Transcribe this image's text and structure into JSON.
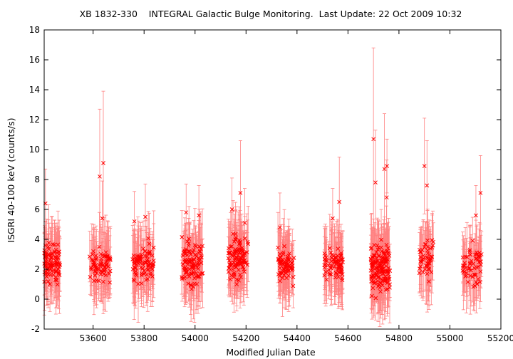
{
  "chart_data": {
    "type": "scatter",
    "title": "XB 1832-330    INTEGRAL Galactic Bulge Monitoring.  Last Update: 22 Oct 2009 10:32",
    "xlabel": "Modified Julian Date",
    "ylabel": "ISGRI 40-100 keV (counts/s)",
    "xlim": [
      53408,
      55200
    ],
    "ylim": [
      -2,
      18
    ],
    "xticks": [
      53600,
      53800,
      54000,
      54200,
      54400,
      54600,
      54800,
      55000,
      55200
    ],
    "yticks": [
      -2,
      0,
      2,
      4,
      6,
      8,
      10,
      12,
      14,
      16,
      18
    ],
    "grid": false,
    "legend": "none",
    "colors": {
      "marker": "#ff0000",
      "errorbar": "#ff8080",
      "axes": "#000000"
    },
    "observation_groups": [
      {
        "mjd_range": [
          53408,
          53470
        ],
        "count": 95,
        "typical_range": [
          0.3,
          4.5
        ],
        "outliers": [
          {
            "x": 53413,
            "y": 6.4,
            "err": 2.3
          }
        ]
      },
      {
        "mjd_range": [
          53585,
          53668
        ],
        "count": 75,
        "typical_range": [
          0.8,
          3.8
        ],
        "outliers": [
          {
            "x": 53626,
            "y": 8.2,
            "err": 4.5
          },
          {
            "x": 53640,
            "y": 9.1,
            "err": 4.8
          },
          {
            "x": 53636,
            "y": 5.4,
            "err": 2.5
          }
        ]
      },
      {
        "mjd_range": [
          53755,
          53840
        ],
        "count": 85,
        "typical_range": [
          0.5,
          4.2
        ],
        "outliers": [
          {
            "x": 53762,
            "y": 5.2,
            "err": 2.0
          },
          {
            "x": 53805,
            "y": 5.5,
            "err": 2.2
          }
        ]
      },
      {
        "mjd_range": [
          53945,
          54030
        ],
        "count": 110,
        "typical_range": [
          0.4,
          4.5
        ],
        "outliers": [
          {
            "x": 53965,
            "y": 5.8,
            "err": 1.9
          },
          {
            "x": 54015,
            "y": 5.6,
            "err": 2.0
          }
        ]
      },
      {
        "mjd_range": [
          54130,
          54210
        ],
        "count": 110,
        "typical_range": [
          0.7,
          4.8
        ],
        "outliers": [
          {
            "x": 54145,
            "y": 6.0,
            "err": 2.1
          },
          {
            "x": 54178,
            "y": 7.1,
            "err": 3.5
          },
          {
            "x": 54195,
            "y": 5.1,
            "err": 2.3
          }
        ]
      },
      {
        "mjd_range": [
          54325,
          54390
        ],
        "count": 75,
        "typical_range": [
          0.6,
          3.8
        ],
        "outliers": [
          {
            "x": 54333,
            "y": 4.8,
            "err": 2.3
          }
        ]
      },
      {
        "mjd_range": [
          54505,
          54580
        ],
        "count": 80,
        "typical_range": [
          0.7,
          4.0
        ],
        "outliers": [
          {
            "x": 54566,
            "y": 6.5,
            "err": 3.0
          },
          {
            "x": 54540,
            "y": 5.4,
            "err": 2.0
          }
        ]
      },
      {
        "mjd_range": [
          54688,
          54765
        ],
        "count": 150,
        "typical_range": [
          -0.3,
          4.5
        ],
        "outliers": [
          {
            "x": 54700,
            "y": 10.7,
            "err": 6.1
          },
          {
            "x": 54708,
            "y": 7.8,
            "err": 3.5
          },
          {
            "x": 54743,
            "y": 8.7,
            "err": 3.7
          },
          {
            "x": 54753,
            "y": 8.9,
            "err": 1.8
          },
          {
            "x": 54752,
            "y": 6.8,
            "err": 2.5
          }
        ]
      },
      {
        "mjd_range": [
          54880,
          54935
        ],
        "count": 50,
        "typical_range": [
          1.0,
          4.5
        ],
        "outliers": [
          {
            "x": 54900,
            "y": 8.9,
            "err": 3.2
          },
          {
            "x": 54910,
            "y": 7.6,
            "err": 3.0
          }
        ]
      },
      {
        "mjd_range": [
          55050,
          55125
        ],
        "count": 60,
        "typical_range": [
          0.4,
          4.2
        ],
        "outliers": [
          {
            "x": 55102,
            "y": 5.6,
            "err": 2.0
          },
          {
            "x": 55120,
            "y": 7.1,
            "err": 2.5
          }
        ]
      }
    ]
  }
}
